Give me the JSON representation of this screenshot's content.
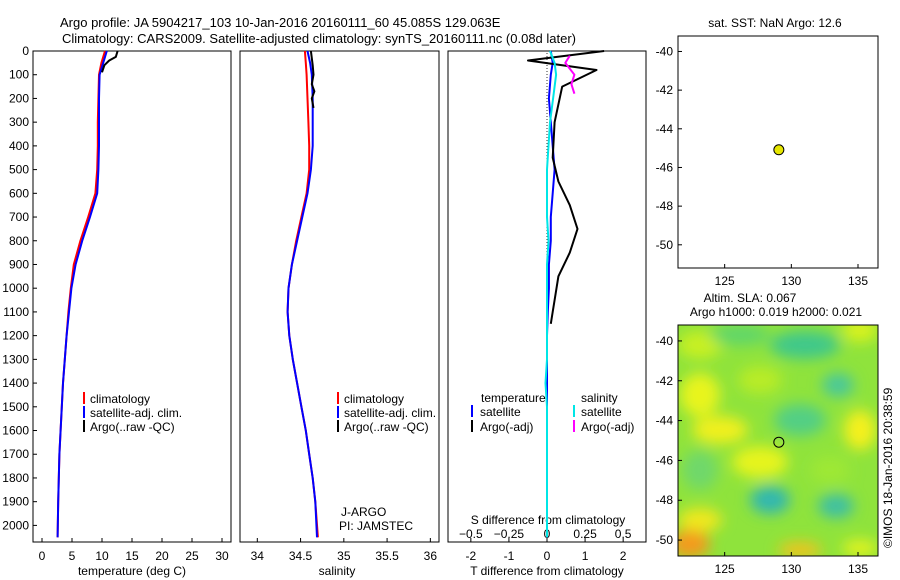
{
  "header": {
    "line1": "Argo profile: JA 5904217_103 10-Jan-2016 20160111_60 45.085S 129.063E",
    "line2": "Climatology: CARS2009. Satellite-adjusted climatology: synTS_20160111.nc (0.08d later)"
  },
  "watermark": "©IMOS 18-Jan-2016 20:38:59",
  "colors": {
    "climatology": "#ff0000",
    "satellite": "#0000ff",
    "argo": "#000000",
    "sal_satellite": "#00e6e6",
    "sal_argo": "#ff00ff",
    "map_marker": "#e6e600"
  },
  "chart_data": [
    {
      "id": "temperature",
      "type": "line",
      "xlabel": "temperature (deg C)",
      "ylabel": "",
      "xlim": [
        -1.5,
        31.5
      ],
      "ylim": [
        2070,
        0
      ],
      "xticks": [
        0,
        5,
        10,
        15,
        20,
        25,
        30
      ],
      "yticks": [
        0,
        100,
        200,
        300,
        400,
        500,
        600,
        700,
        800,
        900,
        1000,
        1100,
        1200,
        1300,
        1400,
        1500,
        1600,
        1700,
        1800,
        1900,
        2000
      ],
      "legend": [
        "climatology",
        "satellite-adj. clim.",
        "Argo(..raw -QC)"
      ],
      "legend_position": "lower-center",
      "series": [
        {
          "name": "climatology",
          "color": "#ff0000",
          "x": [
            10.5,
            9.9,
            9.5,
            9.4,
            9.3,
            9.3,
            9.2,
            8.9,
            7.7,
            6.4,
            5.3,
            4.8,
            4.4,
            4.1,
            3.8,
            3.5,
            3.3,
            3.1,
            2.9,
            2.8,
            2.7,
            2.6
          ],
          "y": [
            0,
            50,
            100,
            200,
            300,
            400,
            500,
            600,
            700,
            800,
            900,
            1000,
            1100,
            1200,
            1300,
            1400,
            1500,
            1600,
            1700,
            1800,
            1900,
            2050
          ]
        },
        {
          "name": "satellite-adj. clim.",
          "color": "#0000ff",
          "x": [
            10.8,
            10.2,
            9.6,
            9.5,
            9.5,
            9.5,
            9.4,
            9.2,
            8.0,
            6.7,
            5.6,
            4.9,
            4.5,
            4.1,
            3.8,
            3.5,
            3.3,
            3.1,
            2.9,
            2.8,
            2.7,
            2.6
          ],
          "y": [
            0,
            50,
            100,
            200,
            300,
            400,
            500,
            600,
            700,
            800,
            900,
            1000,
            1100,
            1200,
            1300,
            1400,
            1500,
            1600,
            1700,
            1800,
            1900,
            2050
          ]
        },
        {
          "name": "Argo(..raw -QC)",
          "color": "#000000",
          "x": [
            12.6,
            12.3,
            11.2,
            10.4,
            10.0
          ],
          "y": [
            0,
            25,
            40,
            60,
            90
          ]
        }
      ],
      "annotations": []
    },
    {
      "id": "salinity",
      "type": "line",
      "xlabel": "salinity",
      "ylabel": "",
      "xlim": [
        33.8,
        36.1
      ],
      "ylim": [
        2070,
        0
      ],
      "xticks": [
        34,
        34.5,
        35,
        35.5,
        36
      ],
      "xticklabels": [
        "34",
        "34.5",
        "35",
        "35.5",
        "36"
      ],
      "legend": [
        "climatology",
        "satellite-adj. clim.",
        "Argo(..raw -QC)"
      ],
      "legend_position": "lower-right",
      "series": [
        {
          "name": "climatology",
          "color": "#ff0000",
          "x": [
            34.55,
            34.56,
            34.57,
            34.58,
            34.59,
            34.6,
            34.6,
            34.57,
            34.51,
            34.45,
            34.4,
            34.36,
            34.35,
            34.37,
            34.41,
            34.46,
            34.51,
            34.56,
            34.6,
            34.64,
            34.67,
            34.7
          ],
          "y": [
            0,
            50,
            100,
            200,
            300,
            400,
            500,
            600,
            700,
            800,
            900,
            1000,
            1100,
            1200,
            1300,
            1400,
            1500,
            1600,
            1700,
            1800,
            1900,
            2050
          ]
        },
        {
          "name": "satellite-adj. clim.",
          "color": "#0000ff",
          "x": [
            34.58,
            34.61,
            34.63,
            34.64,
            34.64,
            34.64,
            34.62,
            34.58,
            34.52,
            34.46,
            34.4,
            34.36,
            34.35,
            34.37,
            34.41,
            34.46,
            34.51,
            34.56,
            34.6,
            34.64,
            34.67,
            34.69
          ],
          "y": [
            0,
            50,
            100,
            200,
            300,
            400,
            500,
            600,
            700,
            800,
            900,
            1000,
            1100,
            1200,
            1300,
            1400,
            1500,
            1600,
            1700,
            1800,
            1900,
            2050
          ]
        },
        {
          "name": "Argo(..raw -QC)",
          "color": "#000000",
          "x": [
            34.62,
            34.63,
            34.64,
            34.65,
            34.63,
            34.66,
            34.63,
            34.65
          ],
          "y": [
            0,
            30,
            60,
            100,
            140,
            170,
            200,
            240
          ]
        }
      ],
      "annotations": [
        "J-ARGO",
        "PI: JAMSTEC"
      ]
    },
    {
      "id": "difference",
      "type": "line",
      "xlabel": "T difference from climatology",
      "xlabel_top": "S difference from climatology",
      "ylabel": "",
      "xlim": [
        -2.6,
        2.6
      ],
      "ylim": [
        2070,
        0
      ],
      "xticks": [
        -2,
        -1,
        0,
        1,
        2
      ],
      "sticks": [
        -0.5,
        -0.25,
        0,
        0.25,
        0.5
      ],
      "sticklabels": [
        "−0.5",
        "−0.25",
        "0",
        "0.25",
        "0.5"
      ],
      "legend_titles": [
        "temperature",
        "salinity"
      ],
      "legend": [
        "satellite",
        "Argo(-adj)",
        "satellite",
        "Argo(-adj)"
      ],
      "legend_position": "lower-center",
      "series": [
        {
          "name": "satellite",
          "color": "#0000ff",
          "units": "T",
          "x": [
            0.1,
            0.15,
            0.1,
            0.05,
            0.1,
            0.15,
            0.2,
            0.15,
            0.1,
            0.1,
            0.05,
            0.05,
            0.02,
            0.0,
            0.0,
            0.0,
            0.0,
            0.0,
            0.0,
            0.0,
            0.0
          ],
          "y": [
            0,
            50,
            100,
            200,
            300,
            400,
            500,
            600,
            700,
            800,
            900,
            1000,
            1100,
            1200,
            1300,
            1400,
            1500,
            1600,
            1700,
            1800,
            2050
          ]
        },
        {
          "name": "Argo(-adj)",
          "color": "#000000",
          "units": "T",
          "x": [
            1.5,
            -0.5,
            1.3,
            0.4,
            0.2,
            0.15,
            0.3,
            0.6,
            0.8,
            0.6,
            0.3,
            0.2,
            0.15,
            0.1
          ],
          "y": [
            0,
            40,
            80,
            150,
            300,
            450,
            550,
            650,
            750,
            850,
            950,
            1050,
            1100,
            1150
          ]
        },
        {
          "name": "satellite",
          "color": "#00e6e6",
          "units": "S",
          "x": [
            0.02,
            0.05,
            0.06,
            0.04,
            0.02,
            0.01,
            0.0,
            0.0,
            0.0,
            0.01,
            0.0,
            0.0,
            0.0,
            0.0,
            0.0,
            -0.01,
            0.0,
            0.0,
            0.0,
            0.0,
            0.0
          ],
          "y": [
            0,
            50,
            100,
            200,
            300,
            400,
            500,
            600,
            700,
            800,
            900,
            1000,
            1100,
            1200,
            1300,
            1400,
            1500,
            1600,
            1700,
            1800,
            2050
          ]
        },
        {
          "name": "Argo(-adj)",
          "color": "#ff00ff",
          "units": "S",
          "x": [
            0.15,
            0.12,
            0.18,
            0.16,
            0.18
          ],
          "y": [
            20,
            50,
            100,
            140,
            180
          ]
        }
      ],
      "annotations": []
    },
    {
      "id": "sst_map",
      "type": "scatter",
      "title": "sat. SST: NaN Argo: 12.6",
      "xlim": [
        121.5,
        136.5
      ],
      "ylim": [
        -51.2,
        -39.2
      ],
      "xticks": [
        125,
        130,
        135
      ],
      "yticks": [
        -40,
        -42,
        -44,
        -46,
        -48,
        -50
      ],
      "points": [
        {
          "x": 129.063,
          "y": -45.085
        }
      ]
    },
    {
      "id": "sla_map",
      "type": "heatmap",
      "title_line1": "Altim. SLA: 0.067",
      "title_line2": "Argo h1000: 0.019 h2000: 0.021",
      "xlim": [
        121.5,
        136.5
      ],
      "ylim": [
        -50.8,
        -39.2
      ],
      "xticks": [
        125,
        130,
        135
      ],
      "yticks": [
        -40,
        -42,
        -44,
        -46,
        -48,
        -50
      ],
      "points": [
        {
          "x": 129.063,
          "y": -45.085
        }
      ]
    }
  ]
}
